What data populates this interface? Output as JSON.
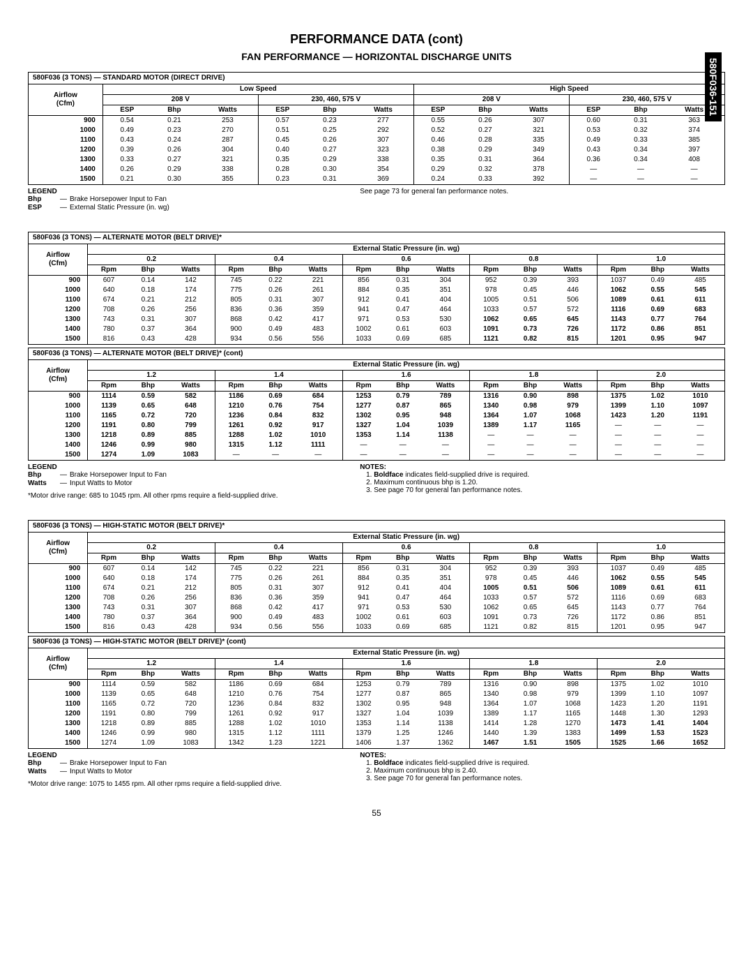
{
  "sidebar": {
    "label": "580F036-151"
  },
  "page": {
    "title": "PERFORMANCE DATA (cont)",
    "subtitle": "FAN PERFORMANCE — HORIZONTAL DISCHARGE UNITS",
    "number": "55"
  },
  "table1": {
    "caption": "580F036 (3 TONS) — STANDARD MOTOR (DIRECT DRIVE)",
    "speedLabels": {
      "low": "Low Speed",
      "high": "High Speed"
    },
    "voltLabels": {
      "v208": "208 V",
      "v230": "230, 460, 575 V"
    },
    "subHeaders": [
      "ESP",
      "Bhp",
      "Watts"
    ],
    "airflowLabel": "Airflow\n(Cfm)",
    "rows": [
      [
        "900",
        "0.54",
        "0.21",
        "253",
        "0.57",
        "0.23",
        "277",
        "0.55",
        "0.26",
        "307",
        "0.60",
        "0.31",
        "363"
      ],
      [
        "1000",
        "0.49",
        "0.23",
        "270",
        "0.51",
        "0.25",
        "292",
        "0.52",
        "0.27",
        "321",
        "0.53",
        "0.32",
        "374"
      ],
      [
        "1100",
        "0.43",
        "0.24",
        "287",
        "0.45",
        "0.26",
        "307",
        "0.46",
        "0.28",
        "335",
        "0.49",
        "0.33",
        "385"
      ],
      [
        "1200",
        "0.39",
        "0.26",
        "304",
        "0.40",
        "0.27",
        "323",
        "0.38",
        "0.29",
        "349",
        "0.43",
        "0.34",
        "397"
      ],
      [
        "1300",
        "0.33",
        "0.27",
        "321",
        "0.35",
        "0.29",
        "338",
        "0.35",
        "0.31",
        "364",
        "0.36",
        "0.34",
        "408"
      ],
      [
        "1400",
        "0.26",
        "0.29",
        "338",
        "0.28",
        "0.30",
        "354",
        "0.29",
        "0.32",
        "378",
        "—",
        "—",
        "—"
      ],
      [
        "1500",
        "0.21",
        "0.30",
        "355",
        "0.23",
        "0.31",
        "369",
        "0.24",
        "0.33",
        "392",
        "—",
        "—",
        "—"
      ]
    ],
    "legendTitle": "LEGEND",
    "legend": [
      {
        "k": "Bhp",
        "v": "Brake Horsepower Input to Fan"
      },
      {
        "k": "ESP",
        "v": "External Static Pressure (in. wg)"
      }
    ],
    "sideNote": "See page 73 for general fan performance notes."
  },
  "espHeader": "External Static Pressure (in. wg)",
  "airflowLabel": "Airflow\n(Cfm)",
  "colTriplet": [
    "Rpm",
    "Bhp",
    "Watts"
  ],
  "table2": {
    "caption": "580F036 (3 TONS) — ALTERNATE MOTOR (BELT DRIVE)*",
    "pressures": [
      "0.2",
      "0.4",
      "0.6",
      "0.8",
      "1.0"
    ],
    "rows": [
      [
        "900",
        "607",
        "0.14",
        "142",
        "745",
        "0.22",
        "221",
        "856",
        "0.31",
        "304",
        "952",
        "0.39",
        "393",
        "1037",
        "0.49",
        "485"
      ],
      [
        "1000",
        "640",
        "0.18",
        "174",
        "775",
        "0.26",
        "261",
        "884",
        "0.35",
        "351",
        "978",
        "0.45",
        "446",
        "1062|b",
        "0.55|b",
        "545|b"
      ],
      [
        "1100",
        "674",
        "0.21",
        "212",
        "805",
        "0.31",
        "307",
        "912",
        "0.41",
        "404",
        "1005",
        "0.51",
        "506",
        "1089|b",
        "0.61|b",
        "611|b"
      ],
      [
        "1200",
        "708",
        "0.26",
        "256",
        "836",
        "0.36",
        "359",
        "941",
        "0.47",
        "464",
        "1033",
        "0.57",
        "572",
        "1116|b",
        "0.69|b",
        "683|b"
      ],
      [
        "1300",
        "743",
        "0.31",
        "307",
        "868",
        "0.42",
        "417",
        "971",
        "0.53",
        "530",
        "1062|b",
        "0.65|b",
        "645|b",
        "1143|b",
        "0.77|b",
        "764|b"
      ],
      [
        "1400",
        "780",
        "0.37",
        "364",
        "900",
        "0.49",
        "483",
        "1002",
        "0.61",
        "603",
        "1091|b",
        "0.73|b",
        "726|b",
        "1172|b",
        "0.86|b",
        "851|b"
      ],
      [
        "1500",
        "816",
        "0.43",
        "428",
        "934",
        "0.56",
        "556",
        "1033",
        "0.69",
        "685",
        "1121|b",
        "0.82|b",
        "815|b",
        "1201|b",
        "0.95|b",
        "947|b"
      ]
    ]
  },
  "table3": {
    "caption": "580F036 (3 TONS) — ALTERNATE MOTOR (BELT DRIVE)* (cont)",
    "pressures": [
      "1.2",
      "1.4",
      "1.6",
      "1.8",
      "2.0"
    ],
    "rows": [
      [
        "900",
        "1114|b",
        "0.59|b",
        "582|b",
        "1186|b",
        "0.69|b",
        "684|b",
        "1253|b",
        "0.79|b",
        "789|b",
        "1316|b",
        "0.90|b",
        "898|b",
        "1375|b",
        "1.02|b",
        "1010|b"
      ],
      [
        "1000",
        "1139|b",
        "0.65|b",
        "648|b",
        "1210|b",
        "0.76|b",
        "754|b",
        "1277|b",
        "0.87|b",
        "865|b",
        "1340|b",
        "0.98|b",
        "979|b",
        "1399|b",
        "1.10|b",
        "1097|b"
      ],
      [
        "1100",
        "1165|b",
        "0.72|b",
        "720|b",
        "1236|b",
        "0.84|b",
        "832|b",
        "1302|b",
        "0.95|b",
        "948|b",
        "1364|b",
        "1.07|b",
        "1068|b",
        "1423|b",
        "1.20|b",
        "1191|b"
      ],
      [
        "1200",
        "1191|b",
        "0.80|b",
        "799|b",
        "1261|b",
        "0.92|b",
        "917|b",
        "1327|b",
        "1.04|b",
        "1039|b",
        "1389|b",
        "1.17|b",
        "1165|b",
        "—",
        "—",
        "—"
      ],
      [
        "1300",
        "1218|b",
        "0.89|b",
        "885|b",
        "1288|b",
        "1.02|b",
        "1010|b",
        "1353|b",
        "1.14|b",
        "1138|b",
        "—",
        "—",
        "—",
        "—",
        "—",
        "—"
      ],
      [
        "1400",
        "1246|b",
        "0.99|b",
        "980|b",
        "1315|b",
        "1.12|b",
        "1111|b",
        "—",
        "—",
        "—",
        "—",
        "—",
        "—",
        "—",
        "—",
        "—"
      ],
      [
        "1500",
        "1274|b",
        "1.09|b",
        "1083|b",
        "—",
        "—",
        "—",
        "—",
        "—",
        "—",
        "—",
        "—",
        "—",
        "—",
        "—",
        "—"
      ]
    ],
    "legendTitle": "LEGEND",
    "legend": [
      {
        "k": "Bhp",
        "v": "Brake Horsepower Input to Fan"
      },
      {
        "k": "Watts",
        "v": "Input Watts to Motor"
      }
    ],
    "notesTitle": "NOTES:",
    "notes": [
      "Boldface indicates field-supplied drive is required.",
      "Maximum continuous bhp is 1.20.",
      "See page 70 for general fan performance notes."
    ],
    "footnote": "*Motor drive range: 685 to 1045 rpm. All other rpms require a field-supplied drive."
  },
  "table4": {
    "caption": "580F036 (3 TONS) — HIGH-STATIC MOTOR (BELT DRIVE)*",
    "pressures": [
      "0.2",
      "0.4",
      "0.6",
      "0.8",
      "1.0"
    ],
    "rows": [
      [
        "900",
        "607",
        "0.14",
        "142",
        "745",
        "0.22",
        "221",
        "856",
        "0.31",
        "304",
        "952",
        "0.39",
        "393",
        "1037",
        "0.49",
        "485"
      ],
      [
        "1000",
        "640",
        "0.18",
        "174",
        "775",
        "0.26",
        "261",
        "884",
        "0.35",
        "351",
        "978",
        "0.45",
        "446",
        "1062|b",
        "0.55|b",
        "545|b"
      ],
      [
        "1100",
        "674",
        "0.21",
        "212",
        "805",
        "0.31",
        "307",
        "912",
        "0.41",
        "404",
        "1005|b",
        "0.51|b",
        "506|b",
        "1089|b",
        "0.61|b",
        "611|b"
      ],
      [
        "1200",
        "708",
        "0.26",
        "256",
        "836",
        "0.36",
        "359",
        "941",
        "0.47",
        "464",
        "1033",
        "0.57",
        "572",
        "1116",
        "0.69",
        "683"
      ],
      [
        "1300",
        "743",
        "0.31",
        "307",
        "868",
        "0.42",
        "417",
        "971",
        "0.53",
        "530",
        "1062",
        "0.65",
        "645",
        "1143",
        "0.77",
        "764"
      ],
      [
        "1400",
        "780",
        "0.37",
        "364",
        "900",
        "0.49",
        "483",
        "1002",
        "0.61",
        "603",
        "1091",
        "0.73",
        "726",
        "1172",
        "0.86",
        "851"
      ],
      [
        "1500",
        "816",
        "0.43",
        "428",
        "934",
        "0.56",
        "556",
        "1033",
        "0.69",
        "685",
        "1121",
        "0.82",
        "815",
        "1201",
        "0.95",
        "947"
      ]
    ]
  },
  "table5": {
    "caption": "580F036 (3 TONS) — HIGH-STATIC MOTOR (BELT DRIVE)* (cont)",
    "pressures": [
      "1.2",
      "1.4",
      "1.6",
      "1.8",
      "2.0"
    ],
    "rows": [
      [
        "900",
        "1114",
        "0.59",
        "582",
        "1186",
        "0.69",
        "684",
        "1253",
        "0.79",
        "789",
        "1316",
        "0.90",
        "898",
        "1375",
        "1.02",
        "1010"
      ],
      [
        "1000",
        "1139",
        "0.65",
        "648",
        "1210",
        "0.76",
        "754",
        "1277",
        "0.87",
        "865",
        "1340",
        "0.98",
        "979",
        "1399",
        "1.10",
        "1097"
      ],
      [
        "1100",
        "1165",
        "0.72",
        "720",
        "1236",
        "0.84",
        "832",
        "1302",
        "0.95",
        "948",
        "1364",
        "1.07",
        "1068",
        "1423",
        "1.20",
        "1191"
      ],
      [
        "1200",
        "1191",
        "0.80",
        "799",
        "1261",
        "0.92",
        "917",
        "1327",
        "1.04",
        "1039",
        "1389",
        "1.17",
        "1165",
        "1448",
        "1.30",
        "1293"
      ],
      [
        "1300",
        "1218",
        "0.89",
        "885",
        "1288",
        "1.02",
        "1010",
        "1353",
        "1.14",
        "1138",
        "1414",
        "1.28",
        "1270",
        "1473|b",
        "1.41|b",
        "1404|b"
      ],
      [
        "1400",
        "1246",
        "0.99",
        "980",
        "1315",
        "1.12",
        "1111",
        "1379",
        "1.25",
        "1246",
        "1440",
        "1.39",
        "1383",
        "1499|b",
        "1.53|b",
        "1523|b"
      ],
      [
        "1500",
        "1274",
        "1.09",
        "1083",
        "1342",
        "1.23",
        "1221",
        "1406",
        "1.37",
        "1362",
        "1467|b",
        "1.51|b",
        "1505|b",
        "1525|b",
        "1.66|b",
        "1652|b"
      ]
    ],
    "legendTitle": "LEGEND",
    "legend": [
      {
        "k": "Bhp",
        "v": "Brake Horsepower Input to Fan"
      },
      {
        "k": "Watts",
        "v": "Input Watts to Motor"
      }
    ],
    "notesTitle": "NOTES:",
    "notes": [
      "Boldface indicates field-supplied drive is required.",
      "Maximum continuous bhp is 2.40.",
      "See page 70 for general fan performance notes."
    ],
    "footnote": "*Motor drive range: 1075 to 1455 rpm. All other rpms require a field-supplied drive."
  }
}
